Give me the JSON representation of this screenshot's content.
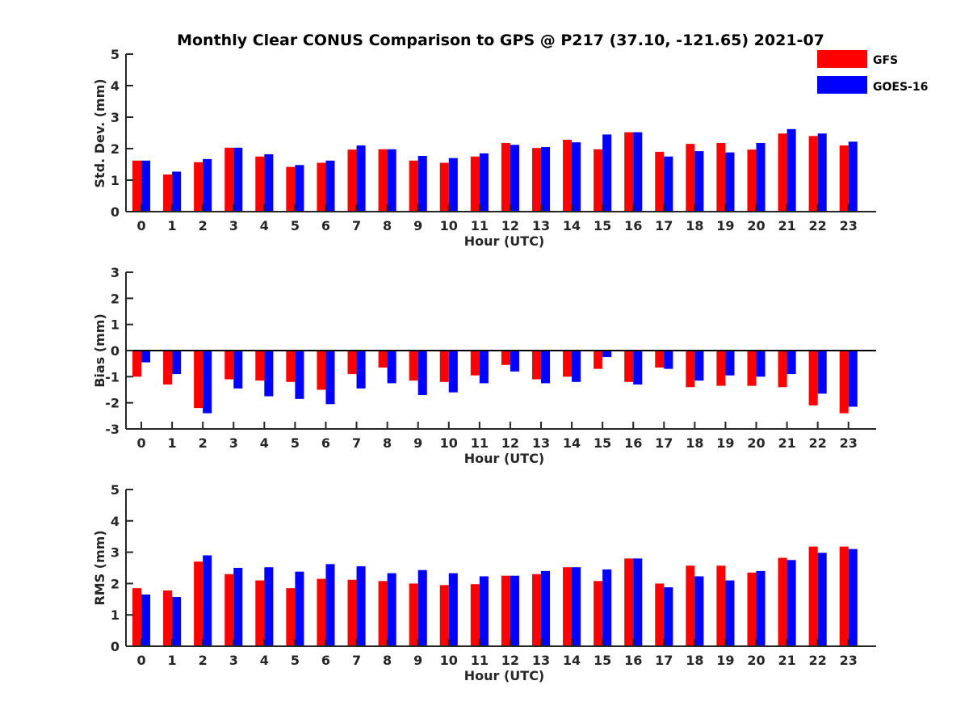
{
  "title": "Monthly Clear CONUS Comparison to GPS @ P217 (37.10, -121.65) 2021-07",
  "legend": [
    {
      "name": "GFS",
      "color": "#ff0000"
    },
    {
      "name": "GOES-16",
      "color": "#0000ff"
    }
  ],
  "chart_data": [
    {
      "type": "bar",
      "title": "Monthly Clear CONUS Comparison to GPS @ P217 (37.10, -121.65) 2021-07",
      "xlabel": "Hour (UTC)",
      "ylabel": "Std. Dev. (mm)",
      "ylim": [
        0,
        5
      ],
      "yticks": [
        0,
        1,
        2,
        3,
        4,
        5
      ],
      "categories": [
        "0",
        "1",
        "2",
        "3",
        "4",
        "5",
        "6",
        "7",
        "8",
        "9",
        "10",
        "11",
        "12",
        "13",
        "14",
        "15",
        "16",
        "17",
        "18",
        "19",
        "20",
        "21",
        "22",
        "23"
      ],
      "series": [
        {
          "name": "GFS",
          "values": [
            1.62,
            1.18,
            1.57,
            2.03,
            1.75,
            1.42,
            1.55,
            1.97,
            1.98,
            1.62,
            1.55,
            1.75,
            2.18,
            2.02,
            2.28,
            1.98,
            2.52,
            1.9,
            2.15,
            2.18,
            1.97,
            2.48,
            2.4,
            2.1
          ]
        },
        {
          "name": "GOES-16",
          "values": [
            1.62,
            1.27,
            1.67,
            2.03,
            1.82,
            1.48,
            1.62,
            2.1,
            1.98,
            1.77,
            1.7,
            1.85,
            2.12,
            2.05,
            2.2,
            2.45,
            2.52,
            1.75,
            1.92,
            1.88,
            2.18,
            2.62,
            2.48,
            2.22
          ]
        }
      ]
    },
    {
      "type": "bar",
      "xlabel": "Hour (UTC)",
      "ylabel": "Bias (mm)",
      "ylim": [
        -3,
        3
      ],
      "yticks": [
        -3,
        -2,
        -1,
        0,
        1,
        2,
        3
      ],
      "categories": [
        "0",
        "1",
        "2",
        "3",
        "4",
        "5",
        "6",
        "7",
        "8",
        "9",
        "10",
        "11",
        "12",
        "13",
        "14",
        "15",
        "16",
        "17",
        "18",
        "19",
        "20",
        "21",
        "22",
        "23"
      ],
      "series": [
        {
          "name": "GFS",
          "values": [
            -1.0,
            -1.3,
            -2.2,
            -1.1,
            -1.15,
            -1.2,
            -1.5,
            -0.9,
            -0.65,
            -1.15,
            -1.2,
            -0.95,
            -0.55,
            -1.1,
            -1.0,
            -0.7,
            -1.2,
            -0.65,
            -1.4,
            -1.35,
            -1.35,
            -1.4,
            -2.1,
            -2.4
          ]
        },
        {
          "name": "GOES-16",
          "values": [
            -0.45,
            -0.9,
            -2.4,
            -1.45,
            -1.75,
            -1.85,
            -2.05,
            -1.45,
            -1.25,
            -1.7,
            -1.6,
            -1.25,
            -0.8,
            -1.25,
            -1.2,
            -0.25,
            -1.3,
            -0.7,
            -1.15,
            -0.95,
            -1.0,
            -0.9,
            -1.65,
            -2.15
          ]
        }
      ]
    },
    {
      "type": "bar",
      "xlabel": "Hour (UTC)",
      "ylabel": "RMS (mm)",
      "ylim": [
        0,
        5
      ],
      "yticks": [
        0,
        1,
        2,
        3,
        4,
        5
      ],
      "categories": [
        "0",
        "1",
        "2",
        "3",
        "4",
        "5",
        "6",
        "7",
        "8",
        "9",
        "10",
        "11",
        "12",
        "13",
        "14",
        "15",
        "16",
        "17",
        "18",
        "19",
        "20",
        "21",
        "22",
        "23"
      ],
      "series": [
        {
          "name": "GFS",
          "values": [
            1.85,
            1.78,
            2.7,
            2.3,
            2.1,
            1.85,
            2.15,
            2.12,
            2.08,
            2.0,
            1.95,
            1.98,
            2.25,
            2.3,
            2.52,
            2.08,
            2.8,
            2.0,
            2.57,
            2.57,
            2.35,
            2.82,
            3.18,
            3.18
          ]
        },
        {
          "name": "GOES-16",
          "values": [
            1.65,
            1.57,
            2.9,
            2.5,
            2.52,
            2.38,
            2.62,
            2.55,
            2.33,
            2.43,
            2.33,
            2.23,
            2.25,
            2.4,
            2.52,
            2.45,
            2.8,
            1.88,
            2.23,
            2.1,
            2.4,
            2.75,
            2.98,
            3.1
          ]
        }
      ]
    }
  ]
}
